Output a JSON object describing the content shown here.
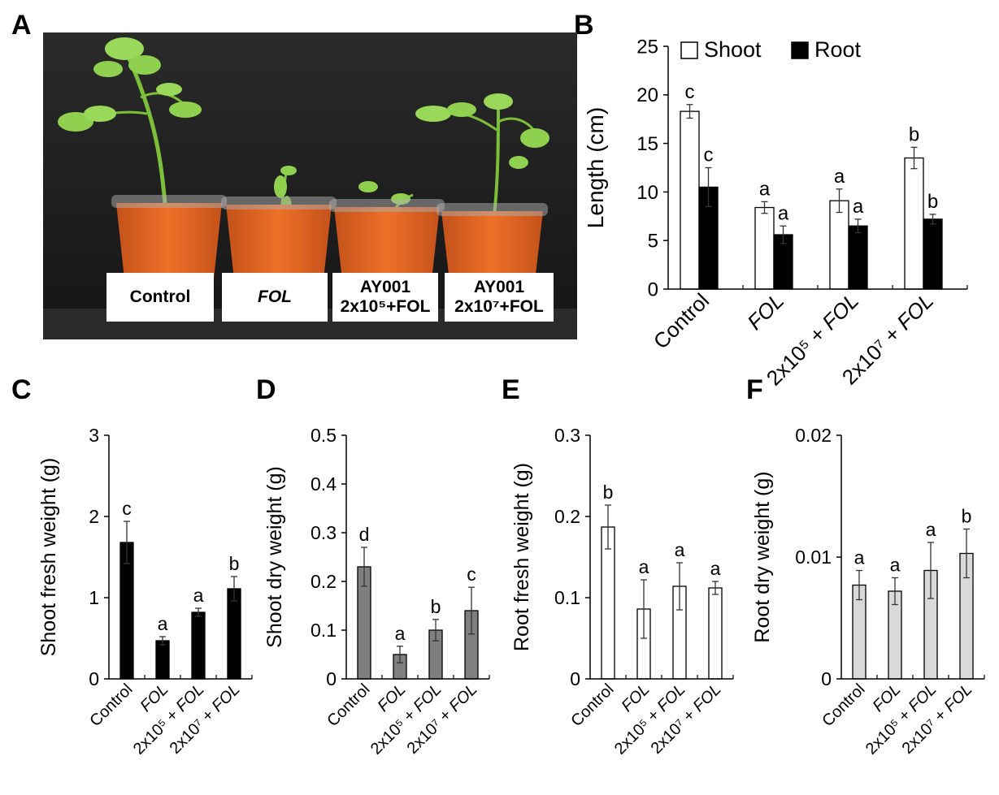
{
  "panels": {
    "a": "A",
    "b": "B",
    "c": "C",
    "d": "D",
    "e": "E",
    "f": "F"
  },
  "photo": {
    "labels": [
      {
        "line1": "Control",
        "line2": ""
      },
      {
        "line1": "FOL",
        "line2": ""
      },
      {
        "line1": "AY001",
        "line2": "2x10⁵+FOL"
      },
      {
        "line1": "AY001",
        "line2": "2x10⁷+FOL"
      }
    ],
    "colors": {
      "pot": "#e0621f",
      "pot_rim": "#c44d12",
      "leaf": "#8fd14f",
      "stem": "#7cbf3a",
      "background": "#1f1f1f"
    }
  },
  "chart_data": [
    {
      "panel": "B",
      "type": "bar",
      "categories": [
        "Control",
        "FOL",
        "2x10⁵ + FOL",
        "2x10⁷ + FOL"
      ],
      "ylabel": "Length (cm)",
      "ylim": [
        0,
        25
      ],
      "yticks": [
        0,
        5,
        10,
        15,
        20,
        25
      ],
      "legend_position": "top",
      "series": [
        {
          "name": "Shoot",
          "color": "#ffffff",
          "values": [
            18.3,
            8.4,
            9.1,
            13.5
          ],
          "errors": [
            0.7,
            0.6,
            1.2,
            1.1
          ],
          "letters": [
            "c",
            "a",
            "a",
            "b"
          ]
        },
        {
          "name": "Root",
          "color": "#000000",
          "values": [
            10.5,
            5.6,
            6.5,
            7.2
          ],
          "errors": [
            2.0,
            0.9,
            0.7,
            0.5
          ],
          "letters": [
            "c",
            "a",
            "a",
            "b"
          ]
        }
      ]
    },
    {
      "panel": "C",
      "type": "bar",
      "categories": [
        "Control",
        "FOL",
        "2x10⁵ + FOL",
        "2x10⁷ + FOL"
      ],
      "ylabel": "Shoot fresh weight (g)",
      "ylim": [
        0,
        3
      ],
      "yticks": [
        "0",
        "1",
        "2",
        "3"
      ],
      "color": "#000000",
      "values": [
        1.68,
        0.47,
        0.82,
        1.11
      ],
      "errors": [
        0.26,
        0.05,
        0.05,
        0.15
      ],
      "letters": [
        "c",
        "a",
        "a",
        "b"
      ]
    },
    {
      "panel": "D",
      "type": "bar",
      "categories": [
        "Control",
        "FOL",
        "2x10⁵ + FOL",
        "2x10⁷ + FOL"
      ],
      "ylabel": "Shoot dry weight (g)",
      "ylim": [
        0,
        0.5
      ],
      "yticks": [
        "0",
        "0.1",
        "0.2",
        "0.3",
        "0.4",
        "0.5"
      ],
      "color": "#7f7f7f",
      "values": [
        0.23,
        0.05,
        0.1,
        0.14
      ],
      "errors": [
        0.04,
        0.017,
        0.022,
        0.048
      ],
      "letters": [
        "d",
        "a",
        "b",
        "c"
      ]
    },
    {
      "panel": "E",
      "type": "bar",
      "categories": [
        "Control",
        "FOL",
        "2x10⁵ + FOL",
        "2x10⁷ + FOL"
      ],
      "ylabel": "Root fresh weight (g)",
      "ylim": [
        0,
        0.3
      ],
      "yticks": [
        "0",
        "0.1",
        "0.2",
        "0.3"
      ],
      "color": "#ffffff",
      "values": [
        0.187,
        0.086,
        0.114,
        0.112
      ],
      "errors": [
        0.027,
        0.036,
        0.029,
        0.008
      ],
      "letters": [
        "b",
        "a",
        "a",
        "a"
      ]
    },
    {
      "panel": "F",
      "type": "bar",
      "categories": [
        "Control",
        "FOL",
        "2x10⁵ + FOL",
        "2x10⁷ + FOL"
      ],
      "ylabel": "Root dry weight (g)",
      "ylim": [
        0,
        0.02
      ],
      "yticks": [
        "0",
        "0.01",
        "0.02"
      ],
      "color": "#d9d9d9",
      "values": [
        0.0077,
        0.0072,
        0.0089,
        0.0103
      ],
      "errors": [
        0.0012,
        0.0011,
        0.0023,
        0.002
      ],
      "letters": [
        "a",
        "a",
        "a",
        "b"
      ]
    }
  ]
}
